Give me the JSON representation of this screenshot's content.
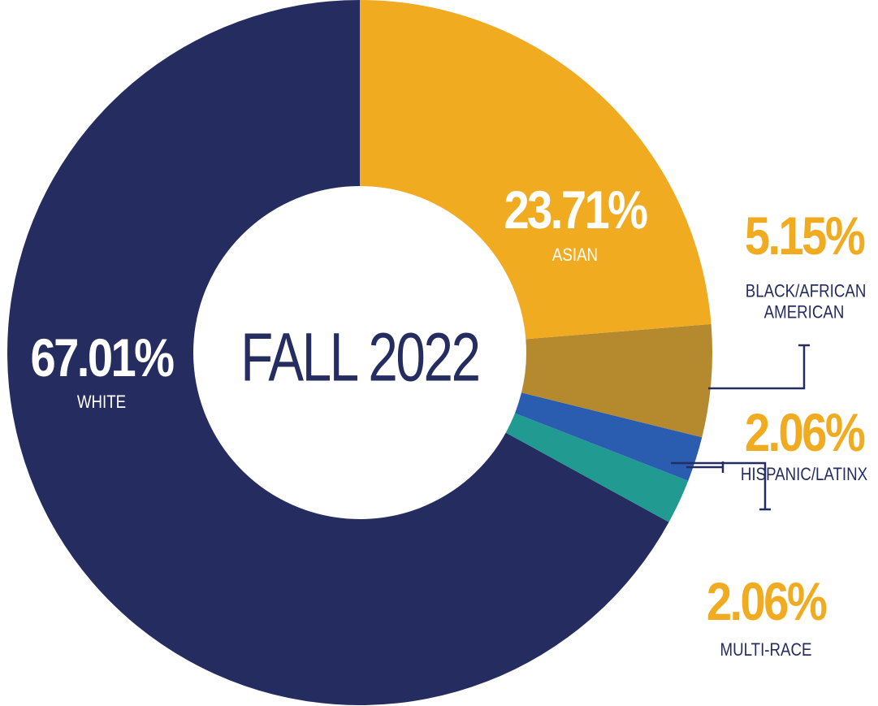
{
  "chart_data": {
    "type": "donut",
    "center_label": "FALL 2022",
    "categories": [
      "ASIAN",
      "BLACK/AFRICAN AMERICAN",
      "HISPANIC/LATINX",
      "MULTI-RACE",
      "WHITE"
    ],
    "values": [
      23.71,
      5.15,
      2.06,
      2.06,
      67.01
    ],
    "value_labels": [
      "23.71%",
      "5.15%",
      "2.06%",
      "2.06%",
      "67.01%"
    ],
    "colors": [
      "#f0ab20",
      "#b5892e",
      "#2a5db0",
      "#219a91",
      "#252c60"
    ]
  }
}
